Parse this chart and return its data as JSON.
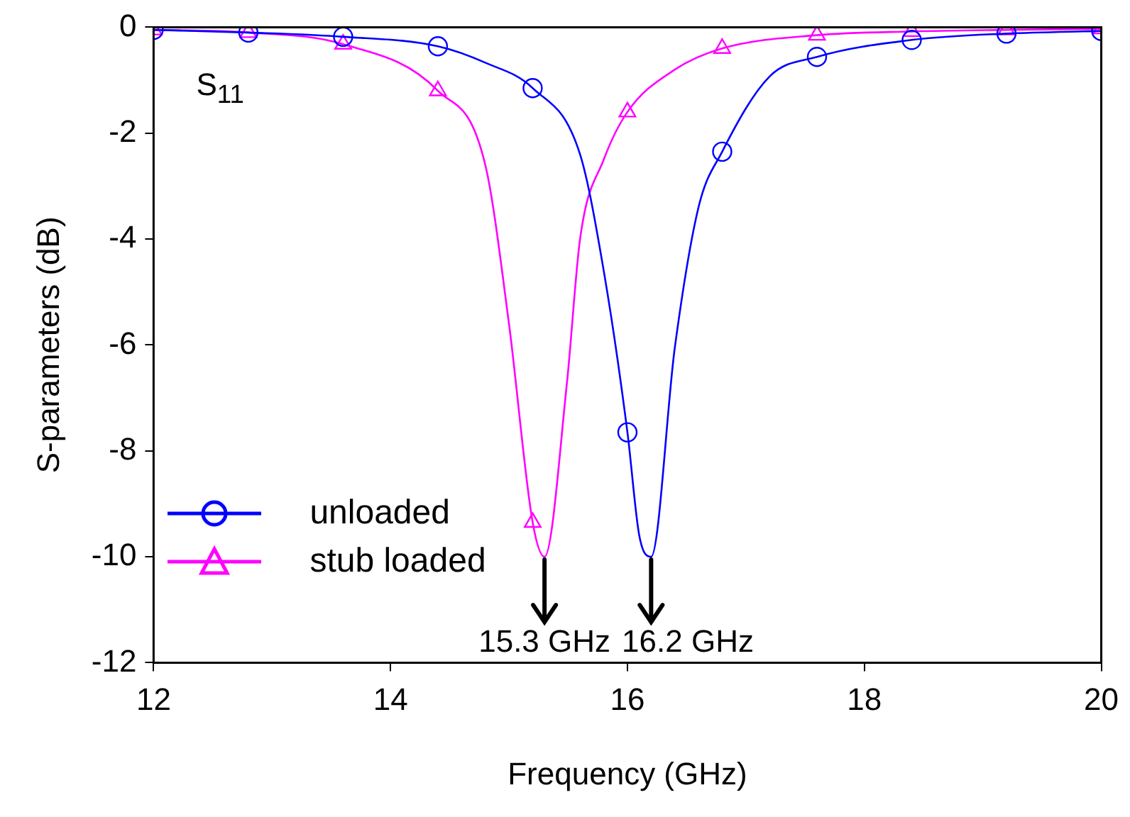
{
  "chart_data": {
    "type": "line",
    "xlabel": "Frequency (GHz)",
    "ylabel": "S-parameters (dB)",
    "xlim": [
      12,
      20
    ],
    "xticks": [
      12,
      14,
      16,
      18,
      20
    ],
    "ylim": [
      -12,
      0
    ],
    "yticks": [
      -12,
      -10,
      -8,
      -6,
      -4,
      -2,
      0
    ],
    "legend": "bottom left",
    "series": [
      {
        "name": "unloaded",
        "color": "#0000ff",
        "marker": "circle",
        "x": [
          12,
          12.8,
          13.6,
          14.4,
          14.8,
          15.2,
          15.6,
          15.8,
          16.0,
          16.1,
          16.2,
          16.4,
          16.6,
          16.8,
          17.2,
          17.6,
          18.4,
          19.2,
          20
        ],
        "values": [
          -0.05,
          -0.1,
          -0.18,
          -0.36,
          -0.67,
          -1.15,
          -2.4,
          -4.6,
          -7.65,
          -9.6,
          -10.0,
          -6.05,
          -3.4,
          -2.35,
          -0.93,
          -0.56,
          -0.24,
          -0.12,
          -0.07
        ]
      },
      {
        "name": "stub loaded",
        "color": "#ff00ff",
        "marker": "triangle",
        "x": [
          12,
          12.8,
          13.6,
          14.4,
          14.8,
          15.0,
          15.2,
          15.3,
          15.49,
          15.6,
          15.8,
          16.0,
          16.4,
          16.8,
          17.6,
          18.4,
          19.2,
          20
        ],
        "values": [
          -0.05,
          -0.1,
          -0.32,
          -1.2,
          -2.6,
          -5.6,
          -9.35,
          -10.0,
          -6.7,
          -4.0,
          -2.5,
          -1.6,
          -0.8,
          -0.4,
          -0.15,
          -0.08,
          -0.05,
          -0.03
        ]
      }
    ],
    "annotations": [
      "S$_{11}$",
      {
        "text": "15.3 GHz",
        "x": 15.3,
        "y": -10.0
      },
      {
        "text": "16.2 GHz",
        "x": 16.2,
        "y": -10.0
      }
    ]
  }
}
